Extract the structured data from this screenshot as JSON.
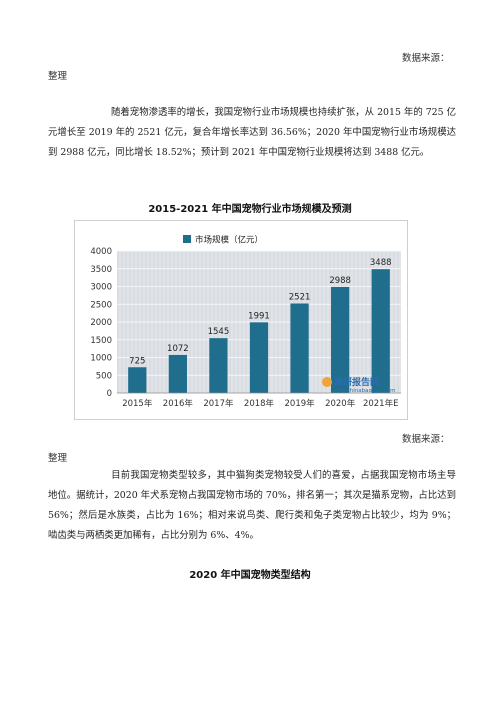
{
  "source1": {
    "label": "数据来源：",
    "suffix": "整理"
  },
  "para1": "随着宠物渗透率的增长，我国宠物行业市场规模也持续扩张，从 2015 年的 725 亿元增长至 2019 年的 2521 亿元，复合年增长率达到 36.56%；2020 年中国宠物行业市场规模达到 2988 亿元，同比增长 18.52%；预计到 2021 年中国宠物行业规模将达到 3488 亿元。",
  "chart_title": "2015-2021 年中国宠物行业市场规模及预测",
  "chart_data": {
    "type": "bar",
    "categories": [
      "2015年",
      "2016年",
      "2017年",
      "2018年",
      "2019年",
      "2020年",
      "2021年E"
    ],
    "series": [
      {
        "name": "市场规模（亿元）",
        "values": [
          725,
          1072,
          1545,
          1991,
          2521,
          2988,
          3488
        ]
      }
    ],
    "ylim": [
      0,
      4000
    ],
    "yticks": [
      0,
      500,
      1000,
      1500,
      2000,
      2500,
      3000,
      3500,
      4000
    ],
    "legend_position": "top",
    "grid": true,
    "bar_color": "#1f6e8e",
    "watermark": {
      "name": "观研报告网",
      "url": "www.chinabaogao.com"
    }
  },
  "source2": {
    "label": "数据来源：",
    "suffix": "整理"
  },
  "para2": "目前我国宠物类型较多，其中猫狗类宠物较受人们的喜爱，占据我国宠物市场主导地位。据统计，2020 年犬系宠物占我国宠物市场的 70%，排名第一；其次是猫系宠物，占比达到 56%；然后是水族类，占比为 16%；相对来说鸟类、爬行类和兔子类宠物占比较少，均为 9%；啮齿类与两栖类更加稀有，占比分别为 6%、4%。",
  "section_title": "2020 年中国宠物类型结构"
}
